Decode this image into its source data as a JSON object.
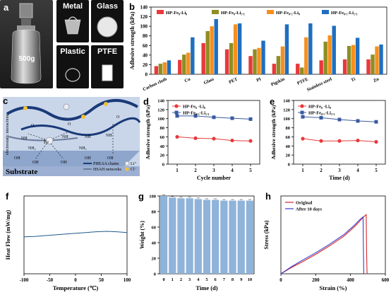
{
  "panels": {
    "a": {
      "label": "a",
      "photos": [
        "Metal",
        "Glass",
        "Plastic",
        "PTFE"
      ],
      "weight_label": "500g"
    },
    "b": {
      "label": "b"
    },
    "c": {
      "label": "c"
    },
    "d": {
      "label": "d"
    },
    "e": {
      "label": "e"
    },
    "f": {
      "label": "f"
    },
    "g": {
      "label": "g"
    },
    "h": {
      "label": "h"
    }
  },
  "diagram_c": {
    "substrate": "Substrate",
    "side_label": "electrostatic interactions",
    "metal_ion": "Fe",
    "groups": [
      "OH",
      "OH",
      "OH",
      "OH",
      "OH",
      "NH₂",
      "NH",
      "NH",
      "NH",
      "NH",
      "O",
      "O",
      "O",
      "NH₂"
    ],
    "legend": [
      {
        "text": "PHEAA chains",
        "color": "#1a3a78"
      },
      {
        "text": "HSAH networks",
        "color": "#6a7a9a"
      },
      {
        "text": "Li⁺",
        "color": "#e9eef6"
      },
      {
        "text": "Cl⁻",
        "color": "#f2c233"
      }
    ]
  },
  "chart_data": [
    {
      "panel": "b",
      "type": "bar",
      "ylabel": "Adhesive strength (kPa)",
      "ylim": [
        0,
        140
      ],
      "yticks": [
        0,
        20,
        40,
        60,
        80,
        100,
        120,
        140
      ],
      "categories": [
        "Carbon cloth",
        "Cu",
        "Glass",
        "PET",
        "PI",
        "Pigskin",
        "PTFE",
        "Stainless steel",
        "Ti",
        "Zn"
      ],
      "series": [
        {
          "name": "HP-Fe₀-Li₀",
          "color": "#e8393c",
          "values": [
            17,
            30,
            65,
            52,
            38,
            22,
            22,
            29,
            31,
            31
          ]
        },
        {
          "name": "HP-Fe₀-Li₅.₁",
          "color": "#8e8e22",
          "values": [
            22,
            41,
            90,
            65,
            52,
            38,
            14,
            68,
            59,
            41
          ]
        },
        {
          "name": "HP-Fe₀.₅-Li₀",
          "color": "#f5901e",
          "values": [
            25,
            45,
            100,
            104,
            55,
            58,
            77,
            81,
            61,
            58
          ]
        },
        {
          "name": "HP-Fe₀.₅-Li₅.₁",
          "color": "#1e6fc0",
          "values": [
            29,
            77,
            115,
            106,
            70,
            104,
            106,
            101,
            76,
            62
          ]
        }
      ],
      "legend_position": "top-left"
    },
    {
      "panel": "d",
      "type": "line",
      "xlabel": "Cycle number",
      "ylabel": "Adhesive strength (kPa)",
      "xlim": [
        0.5,
        5.5
      ],
      "ylim": [
        0,
        140
      ],
      "xticks": [
        1,
        2,
        3,
        4,
        5
      ],
      "yticks": [
        0,
        20,
        40,
        60,
        80,
        100,
        120,
        140
      ],
      "x": [
        1,
        2,
        3,
        4,
        5
      ],
      "series": [
        {
          "name": "HP-Fe₀ -Li₀",
          "color": "#e8393c",
          "marker": "circle",
          "values": [
            60,
            57,
            56,
            52,
            51
          ]
        },
        {
          "name": "HP-Fe₀.₅-Li₅.₁",
          "color": "#3a5aa0",
          "marker": "square",
          "values": [
            106,
            106,
            103,
            101,
            99
          ]
        }
      ],
      "legend_position": "top-left"
    },
    {
      "panel": "e",
      "type": "line",
      "xlabel": "Time (d)",
      "ylabel": "Adhesive strength (kPa)",
      "xlim": [
        0.5,
        5.5
      ],
      "ylim": [
        0,
        140
      ],
      "xticks": [
        1,
        2,
        3,
        4,
        5
      ],
      "yticks": [
        0,
        20,
        40,
        60,
        80,
        100,
        120,
        140
      ],
      "x": [
        1,
        2,
        3,
        4,
        5
      ],
      "series": [
        {
          "name": "HP-Fe₀ -Li₀",
          "color": "#e8393c",
          "marker": "circle",
          "values": [
            56,
            51,
            51,
            52,
            49
          ]
        },
        {
          "name": "HP-Fe₀.₅-Li₅.₁",
          "color": "#3a5aa0",
          "marker": "square",
          "values": [
            104,
            102,
            98,
            95,
            93
          ]
        }
      ],
      "legend_position": "top-left"
    },
    {
      "panel": "f",
      "type": "line",
      "xlabel": "Temperature (℃)",
      "ylabel": "Heat Flow (mW/mg)",
      "xlim": [
        -100,
        100
      ],
      "ylim": [
        -10,
        10
      ],
      "xticks": [
        -100,
        -50,
        0,
        50,
        100
      ],
      "x": [
        -100,
        -80,
        -60,
        -40,
        -20,
        0,
        20,
        40,
        60,
        80,
        100
      ],
      "series": [
        {
          "color": "#1e5a8a",
          "values": [
            -0.5,
            -0.4,
            -0.2,
            0.0,
            0.2,
            0.4,
            0.6,
            0.8,
            0.9,
            0.8,
            0.6
          ]
        }
      ]
    },
    {
      "panel": "g",
      "type": "bar",
      "xlabel": "Time (d)",
      "ylabel": "Weight (%)",
      "ylim": [
        0,
        100
      ],
      "yticks": [
        0,
        20,
        40,
        60,
        80,
        100
      ],
      "categories": [
        "0",
        "1",
        "2",
        "3",
        "4",
        "5",
        "6",
        "7",
        "8",
        "9",
        "10"
      ],
      "series": [
        {
          "color": "#8fb3d9",
          "values": [
            100,
            98,
            97,
            97,
            96,
            95,
            95,
            94,
            94,
            94,
            94
          ]
        }
      ]
    },
    {
      "panel": "h",
      "type": "line",
      "xlabel": "Strain (%)",
      "ylabel": "Stress (kPa)",
      "xlim": [
        0,
        600
      ],
      "ylim": [
        0,
        100
      ],
      "xticks": [
        0,
        200,
        400,
        600
      ],
      "yticks": [
        0,
        20,
        40,
        60,
        80,
        100
      ],
      "series": [
        {
          "name": "Original",
          "color": "#d62728",
          "x": [
            0,
            60,
            120,
            200,
            280,
            360,
            430,
            470,
            490,
            492,
            495
          ],
          "values": [
            0,
            8,
            15,
            25,
            36,
            48,
            62,
            72,
            76,
            30,
            0
          ]
        },
        {
          "name": "After 10 days",
          "color": "#3a3ad0",
          "x": [
            0,
            60,
            120,
            200,
            280,
            360,
            420,
            455,
            472,
            474,
            476
          ],
          "values": [
            0,
            9,
            17,
            27,
            38,
            50,
            62,
            70,
            73,
            30,
            0
          ]
        }
      ],
      "legend_position": "top-left"
    }
  ]
}
